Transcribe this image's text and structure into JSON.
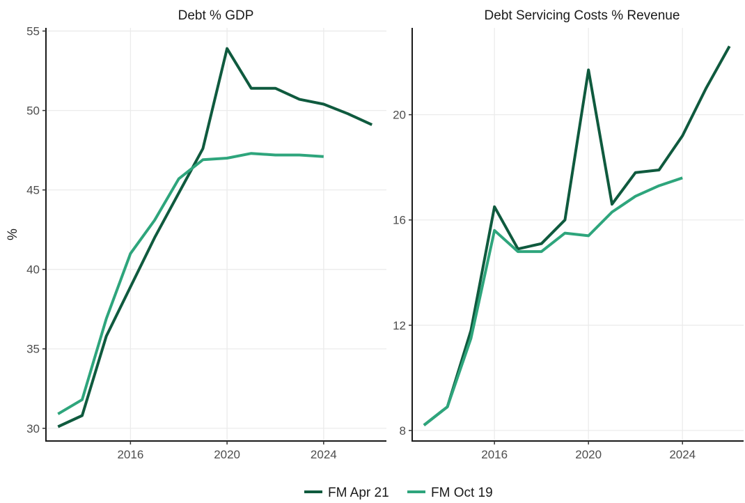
{
  "chart_data": [
    {
      "type": "line",
      "title": "Debt % GDP",
      "xlabel": "",
      "ylabel": "%",
      "xlim": [
        2012.5,
        2026.6
      ],
      "ylim": [
        29.2,
        55.2
      ],
      "xticks": [
        2016,
        2020,
        2024
      ],
      "yticks": [
        30,
        35,
        40,
        45,
        50,
        55
      ],
      "grid": true,
      "series": [
        {
          "name": "FM Apr 21",
          "color": "#0f5a3e",
          "x": [
            2013,
            2014,
            2015,
            2016,
            2017,
            2018,
            2019,
            2020,
            2021,
            2022,
            2023,
            2024,
            2025,
            2026
          ],
          "values": [
            30.1,
            30.8,
            35.8,
            38.9,
            42.0,
            44.8,
            47.6,
            53.9,
            51.4,
            51.4,
            50.7,
            50.4,
            49.8,
            49.1
          ]
        },
        {
          "name": "FM Oct 19",
          "color": "#2ea57c",
          "x": [
            2013,
            2014,
            2015,
            2016,
            2017,
            2018,
            2019,
            2020,
            2021,
            2022,
            2023,
            2024
          ],
          "values": [
            30.9,
            31.8,
            36.9,
            41.0,
            43.1,
            45.7,
            46.9,
            47.0,
            47.3,
            47.2,
            47.2,
            47.1
          ]
        }
      ]
    },
    {
      "type": "line",
      "title": "Debt Servicing Costs % Revenue",
      "xlabel": "",
      "ylabel": "",
      "xlim": [
        2012.5,
        2026.6
      ],
      "ylim": [
        7.6,
        23.3
      ],
      "xticks": [
        2016,
        2020,
        2024
      ],
      "yticks": [
        8,
        12,
        16,
        20
      ],
      "grid": true,
      "series": [
        {
          "name": "FM Apr 21",
          "color": "#0f5a3e",
          "x": [
            2013,
            2014,
            2015,
            2016,
            2017,
            2018,
            2019,
            2020,
            2021,
            2022,
            2023,
            2024,
            2025,
            2026
          ],
          "values": [
            8.2,
            8.9,
            11.8,
            16.5,
            14.9,
            15.1,
            16.0,
            21.7,
            16.6,
            17.8,
            17.9,
            19.2,
            21.0,
            22.6
          ]
        },
        {
          "name": "FM Oct 19",
          "color": "#2ea57c",
          "x": [
            2013,
            2014,
            2015,
            2016,
            2017,
            2018,
            2019,
            2020,
            2021,
            2022,
            2023,
            2024
          ],
          "values": [
            8.2,
            8.9,
            11.5,
            15.6,
            14.8,
            14.8,
            15.5,
            15.4,
            16.3,
            16.9,
            17.3,
            17.6
          ]
        }
      ]
    }
  ],
  "legend": {
    "position": "bottom",
    "items": [
      {
        "label": "FM Apr 21",
        "color": "#0f5a3e"
      },
      {
        "label": "FM Oct 19",
        "color": "#2ea57c"
      }
    ]
  }
}
